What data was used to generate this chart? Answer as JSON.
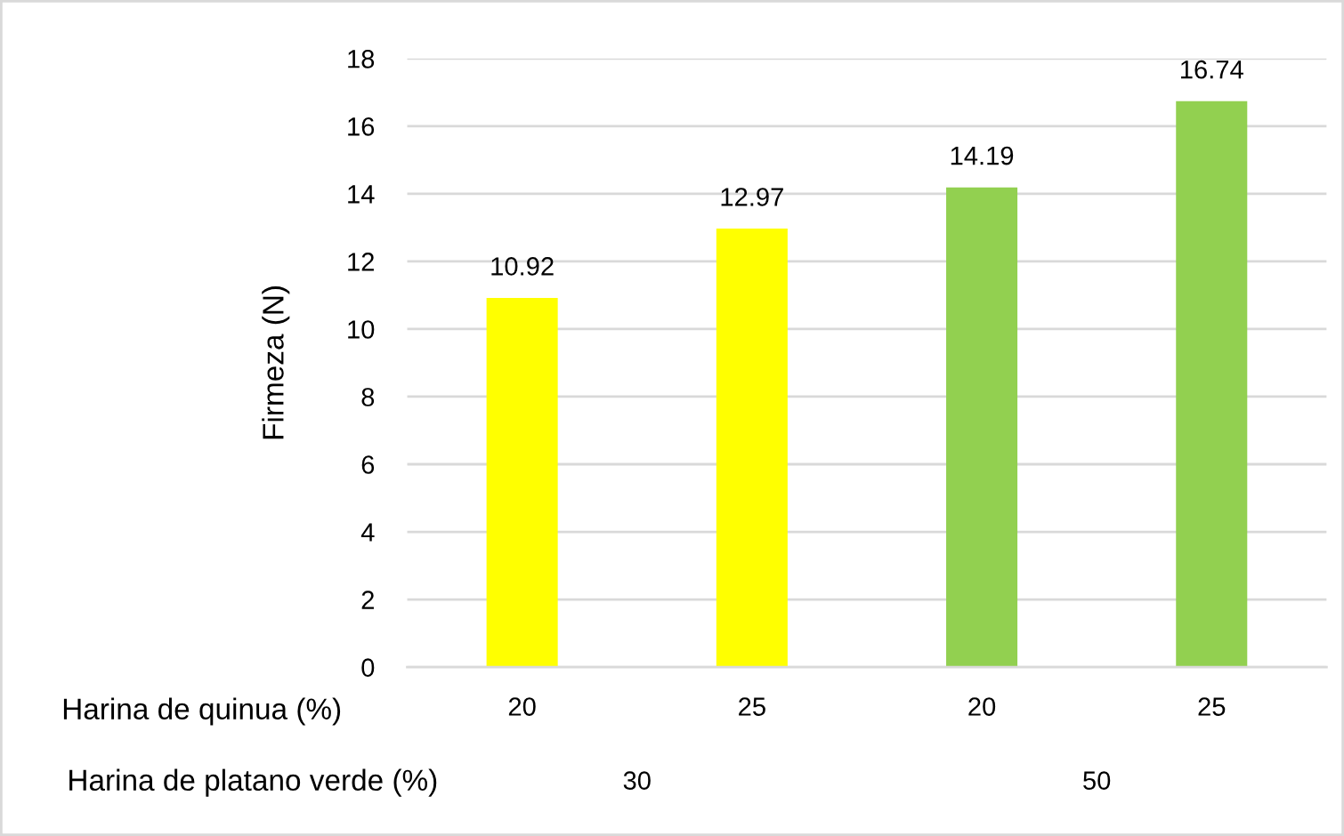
{
  "chart_data": {
    "type": "bar",
    "categories": [
      "20",
      "25",
      "20",
      "25"
    ],
    "values": [
      10.92,
      12.97,
      14.19,
      16.74
    ],
    "colors": [
      "#ffff00",
      "#ffff00",
      "#92d050",
      "#92d050"
    ],
    "xlabel": "Harina de quinua (%)",
    "ylabel": "Firmeza (N)",
    "ylim": [
      0,
      18
    ],
    "yticks": [
      0,
      2,
      4,
      6,
      8,
      10,
      12,
      14,
      16,
      18
    ],
    "grid": "y",
    "data_labels": true,
    "annotations": [
      "Harina de platano verde (%)",
      "30",
      "50"
    ]
  }
}
